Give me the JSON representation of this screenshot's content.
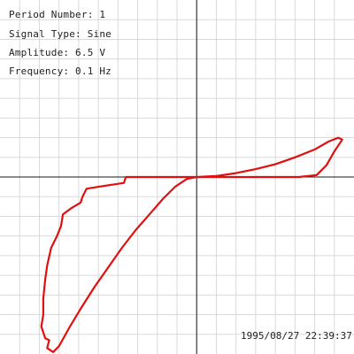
{
  "info": {
    "period": "Period Number: 1",
    "signal": "Signal Type: Sine",
    "amplitude": "Amplitude: 6.5 V",
    "frequency": "Frequency: 0.1 Hz"
  },
  "timestamp": "1995/08/27 22:39:37",
  "colors": {
    "background": "#ffffff",
    "grid": "#d9d9d9",
    "axis": "#1a1a1a",
    "trace": "#e01010",
    "text": "#222222"
  },
  "chart_data": {
    "type": "line",
    "grid": true,
    "xlim": [
      -10,
      8
    ],
    "ylim": [
      -9,
      9
    ],
    "series": [
      {
        "values_xy": [
          [
            -7.0,
            -8.6
          ],
          [
            -6.5,
            -7.7
          ],
          [
            -5.9,
            -6.7
          ],
          [
            -5.2,
            -5.6
          ],
          [
            -4.5,
            -4.6
          ],
          [
            -3.8,
            -3.6
          ],
          [
            -3.1,
            -2.7
          ],
          [
            -2.4,
            -1.9
          ],
          [
            -1.7,
            -1.1
          ],
          [
            -1.1,
            -0.5
          ],
          [
            -0.5,
            -0.1
          ],
          [
            0.0,
            0.0
          ],
          [
            1.0,
            0.05
          ],
          [
            2.0,
            0.2
          ],
          [
            3.0,
            0.4
          ],
          [
            4.0,
            0.65
          ],
          [
            5.0,
            1.0
          ],
          [
            6.0,
            1.4
          ],
          [
            6.7,
            1.8
          ],
          [
            7.2,
            2.0
          ],
          [
            7.4,
            1.9
          ],
          [
            7.0,
            1.3
          ],
          [
            6.6,
            0.6
          ],
          [
            6.1,
            0.1
          ],
          [
            5.2,
            0.0
          ],
          [
            3.0,
            0.0
          ],
          [
            1.0,
            0.0
          ],
          [
            0.0,
            0.0
          ],
          [
            -1.5,
            0.0
          ],
          [
            -3.0,
            0.0
          ],
          [
            -3.6,
            0.0
          ],
          [
            -3.7,
            -0.3
          ],
          [
            -5.0,
            -0.5
          ],
          [
            -5.6,
            -0.6
          ],
          [
            -5.8,
            -1.0
          ],
          [
            -5.9,
            -1.3
          ],
          [
            -6.4,
            -1.6
          ],
          [
            -6.8,
            -1.9
          ],
          [
            -6.9,
            -2.5
          ],
          [
            -7.1,
            -3.0
          ],
          [
            -7.4,
            -3.6
          ],
          [
            -7.6,
            -4.5
          ],
          [
            -7.7,
            -5.2
          ],
          [
            -7.8,
            -6.2
          ],
          [
            -7.8,
            -7.0
          ],
          [
            -7.9,
            -7.6
          ],
          [
            -7.7,
            -8.2
          ],
          [
            -7.5,
            -8.3
          ],
          [
            -7.6,
            -8.7
          ],
          [
            -7.3,
            -8.9
          ],
          [
            -7.0,
            -8.6
          ]
        ]
      }
    ]
  }
}
